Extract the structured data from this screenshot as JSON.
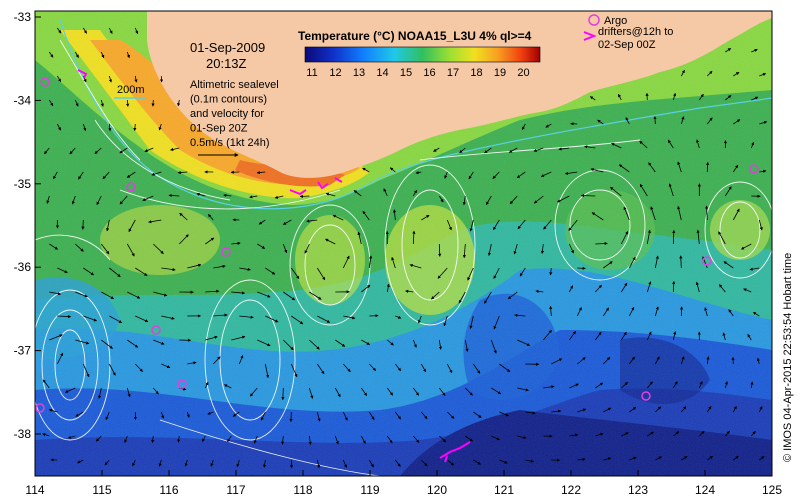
{
  "map": {
    "date": "01-Sep-2009",
    "time": "20:13Z",
    "colorbar": {
      "title": "Temperature (°C) NOAA15_L3U 4% ql>=4",
      "ticks": [
        "11",
        "12",
        "13",
        "14",
        "15",
        "16",
        "17",
        "18",
        "19",
        "20"
      ]
    },
    "depth_contour_label": "200m",
    "altimetry_lines": [
      "Altimetric sealevel",
      "(0.1m contours)",
      "and velocity for",
      "01-Sep 20Z",
      "0.5m/s (1kt 24h)"
    ],
    "argo_legend": [
      "Argo"
    ],
    "drifter_legend": [
      "drifters@12h to",
      "02-Sep 00Z"
    ],
    "credit": "© IMOS 04-Apr-2015 22:53:54 Hobart time",
    "lon_ticks": [
      "114",
      "115",
      "116",
      "117",
      "118",
      "119",
      "120",
      "121",
      "122",
      "123",
      "124",
      "125"
    ],
    "lat_ticks": [
      "-33",
      "-34",
      "-35",
      "-36",
      "-37",
      "-38"
    ],
    "colors": {
      "land": "#f6c9a6",
      "argo": "#e040e0",
      "drifter": "#ff00ff",
      "contour": "#ffffff",
      "depth_contour": "#5ad0e0"
    }
  }
}
